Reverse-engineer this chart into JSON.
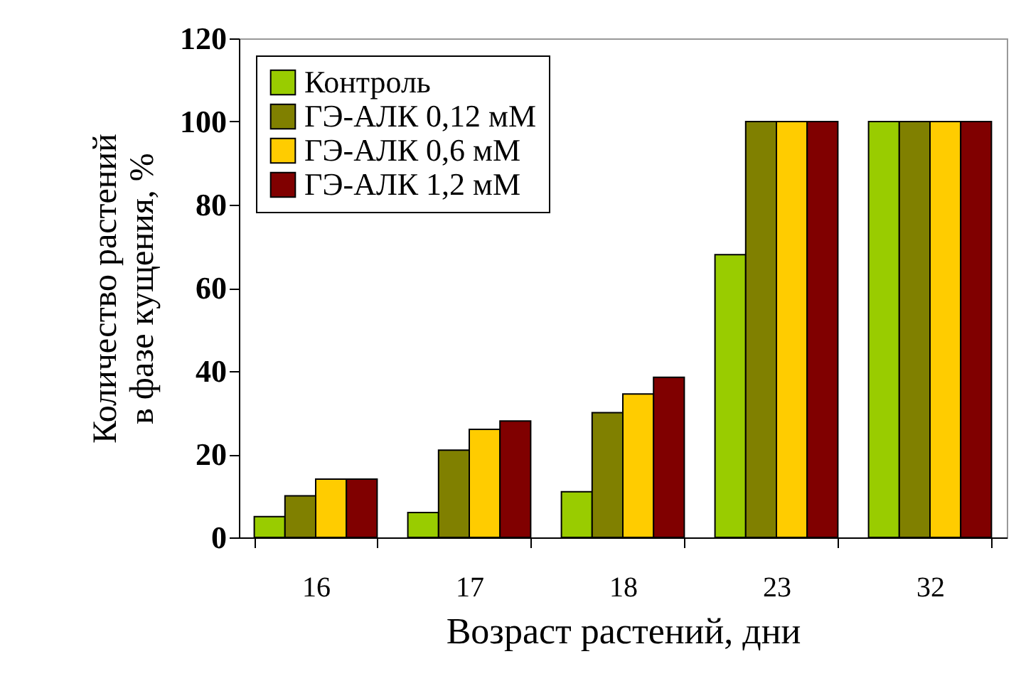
{
  "chart_data": {
    "type": "bar",
    "xlabel": "Возраст растений, дни",
    "ylabel": "Количество растений в фазе кущения, %",
    "categories": [
      "16",
      "17",
      "18",
      "23",
      "32"
    ],
    "series": [
      {
        "name": "Контроль",
        "color": "#99cc00",
        "values": [
          5,
          6,
          11,
          68,
          100
        ]
      },
      {
        "name": "ГЭ-АЛК 0,12 мМ",
        "color": "#808000",
        "values": [
          10,
          21,
          30,
          100,
          100
        ]
      },
      {
        "name": "ГЭ-АЛК 0,6 мМ",
        "color": "#ffcc00",
        "values": [
          14,
          26,
          34.5,
          100,
          100
        ]
      },
      {
        "name": "ГЭ-АЛК 1,2 мМ",
        "color": "#800000",
        "values": [
          14,
          28,
          38.5,
          100,
          100
        ]
      }
    ],
    "ylim": [
      0,
      120
    ],
    "yticks": [
      0,
      20,
      40,
      60,
      80,
      100,
      120
    ],
    "grid": false,
    "legend": "top left"
  }
}
